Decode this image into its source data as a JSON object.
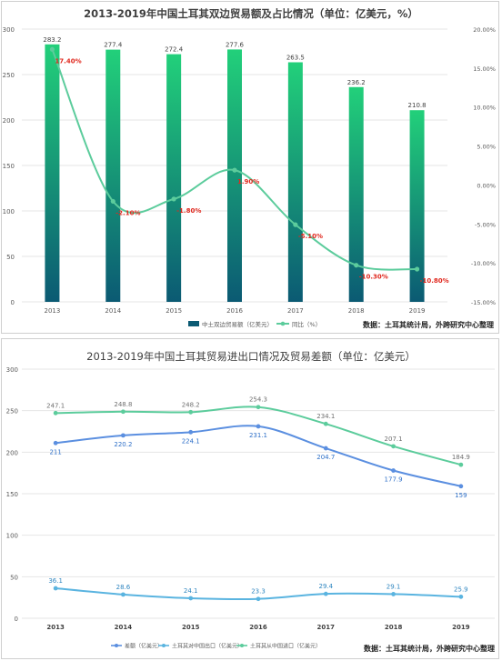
{
  "chart_data": [
    {
      "type": "bar",
      "title": "2013-2019年中国土耳其双边贸易额及占比情况（单位：亿美元，%）",
      "categories": [
        "2013",
        "2014",
        "2015",
        "2016",
        "2017",
        "2018",
        "2019"
      ],
      "ylim": [
        0,
        300
      ],
      "y_ticks": [
        "0",
        "50",
        "100",
        "150",
        "200",
        "250",
        "300"
      ],
      "y2lim": [
        -15,
        20
      ],
      "y2_ticks": [
        "-15.00%",
        "-10.00%",
        "-5.00%",
        "0.00%",
        "5.00%",
        "10.00%",
        "15.00%",
        "20.00%"
      ],
      "series": [
        {
          "name": "中土双边贸易额（亿美元）",
          "kind": "bar",
          "values": [
            283.2,
            277.4,
            272.4,
            277.6,
            263.5,
            236.2,
            210.8
          ],
          "labels": [
            "283.2",
            "277.4",
            "272.4",
            "277.6",
            "263.5",
            "236.2",
            "210.8"
          ],
          "color_top": "#22d07a",
          "color_bottom": "#0b5a73"
        },
        {
          "name": "同比（%）",
          "kind": "line",
          "axis": "right",
          "values": [
            17.4,
            -2.1,
            -1.8,
            1.9,
            -5.1,
            -10.3,
            -10.8
          ],
          "labels": [
            "17.40%",
            "-2.10%",
            "-1.80%",
            "1.90%",
            "-5.10%",
            "-10.30%",
            "-10.80%"
          ],
          "color": "#5ccc9c",
          "label_color": "#e0281e"
        }
      ],
      "source": "数据：土耳其统计局，外跨研究中心整理"
    },
    {
      "type": "line",
      "title": "2013-2019年中国土耳其贸易进出口情况及贸易差额（单位：亿美元）",
      "categories": [
        "2013",
        "2014",
        "2015",
        "2016",
        "2017",
        "2018",
        "2019"
      ],
      "ylim": [
        0,
        300
      ],
      "y_ticks": [
        "0",
        "50",
        "100",
        "150",
        "200",
        "250",
        "300"
      ],
      "series": [
        {
          "name": "差额（亿美元）",
          "values": [
            211,
            220.2,
            224.1,
            231.1,
            204.7,
            177.9,
            159
          ],
          "labels": [
            "211",
            "220.2",
            "224.1",
            "231.1",
            "204.7",
            "177.9",
            "159"
          ],
          "color": "#5b8fe0",
          "label_color": "#2d6fc8",
          "label_pos": "below"
        },
        {
          "name": "土耳其对中国出口（亿美元）",
          "values": [
            36.1,
            28.6,
            24.1,
            23.3,
            29.4,
            29.1,
            25.9
          ],
          "labels": [
            "36.1",
            "28.6",
            "24.1",
            "23.3",
            "29.4",
            "29.1",
            "25.9"
          ],
          "color": "#5ab4e0",
          "label_color": "#2f86c0",
          "label_pos": "above"
        },
        {
          "name": "土耳其从中国进口（亿美元）",
          "values": [
            247.1,
            248.8,
            248.2,
            254.3,
            234.1,
            207.1,
            184.9
          ],
          "labels": [
            "247.1",
            "248.8",
            "248.2",
            "254.3",
            "234.1",
            "207.1",
            "184.9"
          ],
          "color": "#5ccc9c",
          "label_color": "#707070",
          "label_pos": "above"
        }
      ],
      "source": "数据：土耳其统计局，外跨研究中心整理"
    }
  ]
}
